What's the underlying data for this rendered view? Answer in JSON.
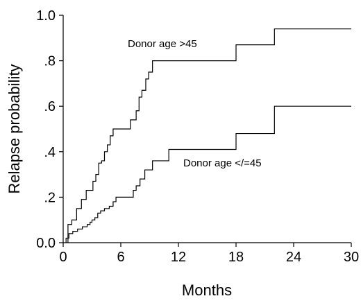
{
  "chart_data": {
    "type": "line",
    "step": true,
    "xlabel": "Months",
    "ylabel": "Relapse probability",
    "xlim": [
      0,
      30
    ],
    "ylim": [
      0,
      1.0
    ],
    "x_ticks": [
      0,
      6,
      12,
      18,
      24,
      30
    ],
    "x_tick_labels": [
      "0",
      "6",
      "12",
      "18",
      "24",
      "30"
    ],
    "y_ticks": [
      0,
      0.2,
      0.4,
      0.6,
      0.8,
      1.0
    ],
    "y_tick_labels": [
      "0.0",
      ".2",
      ".4",
      ".6",
      ".8",
      "1.0"
    ],
    "grid": false,
    "series": [
      {
        "name": "Donor age >45",
        "x": [
          0.5,
          0.9,
          1.4,
          1.9,
          2.4,
          3.1,
          3.4,
          3.7,
          4.0,
          4.3,
          4.6,
          4.9,
          5.2,
          5.6,
          7.0,
          7.6,
          7.9,
          8.2,
          8.6,
          8.9,
          9.3,
          11.0,
          18.0,
          22.0,
          30.0
        ],
        "y": [
          0.08,
          0.1,
          0.15,
          0.19,
          0.23,
          0.27,
          0.3,
          0.35,
          0.36,
          0.4,
          0.43,
          0.47,
          0.5,
          0.5,
          0.54,
          0.58,
          0.64,
          0.67,
          0.72,
          0.75,
          0.8,
          0.8,
          0.87,
          0.94,
          0.94
        ]
      },
      {
        "name": "Donor age </=45",
        "x": [
          0.3,
          0.6,
          1.0,
          1.5,
          2.0,
          2.5,
          2.8,
          3.0,
          3.3,
          3.6,
          3.9,
          4.3,
          4.8,
          5.2,
          5.5,
          6.8,
          7.3,
          7.6,
          8.0,
          8.5,
          9.3,
          11.0,
          18.0,
          22.0,
          30.0
        ],
        "y": [
          0.02,
          0.04,
          0.05,
          0.06,
          0.07,
          0.08,
          0.09,
          0.1,
          0.11,
          0.13,
          0.14,
          0.15,
          0.16,
          0.18,
          0.2,
          0.2,
          0.23,
          0.25,
          0.28,
          0.32,
          0.36,
          0.41,
          0.48,
          0.6,
          0.6
        ]
      }
    ]
  }
}
